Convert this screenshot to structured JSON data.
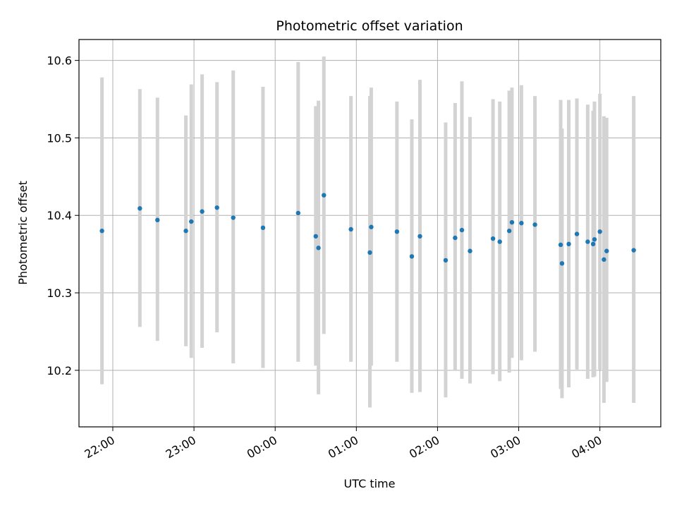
{
  "chart_data": {
    "type": "scatter",
    "title": "Photometric offset variation",
    "xlabel": "UTC time",
    "ylabel": "Photometric offset",
    "xlim": [
      "21:35",
      "04:45"
    ],
    "ylim": [
      10.127,
      10.627
    ],
    "grid": true,
    "x_ticks": [
      "22:00",
      "23:00",
      "00:00",
      "01:00",
      "02:00",
      "03:00",
      "04:00"
    ],
    "y_ticks": [
      10.2,
      10.3,
      10.4,
      10.5,
      10.6
    ],
    "colors": {
      "point": "#1f77b4",
      "errorbar": "#d3d3d3",
      "grid": "#b0b0b0"
    },
    "points": [
      {
        "x": "21:52",
        "y": 10.38,
        "low": 10.182,
        "high": 10.578
      },
      {
        "x": "22:20",
        "y": 10.409,
        "low": 10.256,
        "high": 10.563
      },
      {
        "x": "22:33",
        "y": 10.394,
        "low": 10.238,
        "high": 10.552
      },
      {
        "x": "22:54",
        "y": 10.38,
        "low": 10.231,
        "high": 10.529
      },
      {
        "x": "22:58",
        "y": 10.392,
        "low": 10.216,
        "high": 10.569
      },
      {
        "x": "23:06",
        "y": 10.405,
        "low": 10.229,
        "high": 10.582
      },
      {
        "x": "23:17",
        "y": 10.41,
        "low": 10.249,
        "high": 10.572
      },
      {
        "x": "23:29",
        "y": 10.397,
        "low": 10.209,
        "high": 10.587
      },
      {
        "x": "23:51",
        "y": 10.384,
        "low": 10.203,
        "high": 10.566
      },
      {
        "x": "00:17",
        "y": 10.403,
        "low": 10.211,
        "high": 10.598
      },
      {
        "x": "00:30",
        "y": 10.373,
        "low": 10.206,
        "high": 10.541
      },
      {
        "x": "00:32",
        "y": 10.358,
        "low": 10.169,
        "high": 10.548
      },
      {
        "x": "00:36",
        "y": 10.426,
        "low": 10.247,
        "high": 10.605
      },
      {
        "x": "00:56",
        "y": 10.382,
        "low": 10.211,
        "high": 10.554
      },
      {
        "x": "01:10",
        "y": 10.352,
        "low": 10.152,
        "high": 10.554
      },
      {
        "x": "01:11",
        "y": 10.385,
        "low": 10.206,
        "high": 10.565
      },
      {
        "x": "01:30",
        "y": 10.379,
        "low": 10.211,
        "high": 10.547
      },
      {
        "x": "01:41",
        "y": 10.347,
        "low": 10.171,
        "high": 10.524
      },
      {
        "x": "01:47",
        "y": 10.373,
        "low": 10.172,
        "high": 10.575
      },
      {
        "x": "02:06",
        "y": 10.342,
        "low": 10.165,
        "high": 10.52
      },
      {
        "x": "02:13",
        "y": 10.371,
        "low": 10.2,
        "high": 10.545
      },
      {
        "x": "02:18",
        "y": 10.381,
        "low": 10.189,
        "high": 10.573
      },
      {
        "x": "02:24",
        "y": 10.354,
        "low": 10.183,
        "high": 10.527
      },
      {
        "x": "02:41",
        "y": 10.37,
        "low": 10.195,
        "high": 10.55
      },
      {
        "x": "02:46",
        "y": 10.366,
        "low": 10.186,
        "high": 10.547
      },
      {
        "x": "02:53",
        "y": 10.38,
        "low": 10.197,
        "high": 10.561
      },
      {
        "x": "02:55",
        "y": 10.391,
        "low": 10.216,
        "high": 10.565
      },
      {
        "x": "03:02",
        "y": 10.39,
        "low": 10.213,
        "high": 10.568
      },
      {
        "x": "03:12",
        "y": 10.388,
        "low": 10.224,
        "high": 10.554
      },
      {
        "x": "03:31",
        "y": 10.362,
        "low": 10.176,
        "high": 10.549
      },
      {
        "x": "03:32",
        "y": 10.338,
        "low": 10.164,
        "high": 10.512
      },
      {
        "x": "03:37",
        "y": 10.363,
        "low": 10.178,
        "high": 10.549
      },
      {
        "x": "03:43",
        "y": 10.376,
        "low": 10.201,
        "high": 10.551
      },
      {
        "x": "03:51",
        "y": 10.366,
        "low": 10.189,
        "high": 10.543
      },
      {
        "x": "03:55",
        "y": 10.363,
        "low": 10.191,
        "high": 10.535
      },
      {
        "x": "03:56",
        "y": 10.369,
        "low": 10.192,
        "high": 10.547
      },
      {
        "x": "04:00",
        "y": 10.379,
        "low": 10.201,
        "high": 10.557
      },
      {
        "x": "04:03",
        "y": 10.343,
        "low": 10.158,
        "high": 10.528
      },
      {
        "x": "04:05",
        "y": 10.354,
        "low": 10.185,
        "high": 10.526
      },
      {
        "x": "04:25",
        "y": 10.355,
        "low": 10.158,
        "high": 10.554
      }
    ]
  }
}
